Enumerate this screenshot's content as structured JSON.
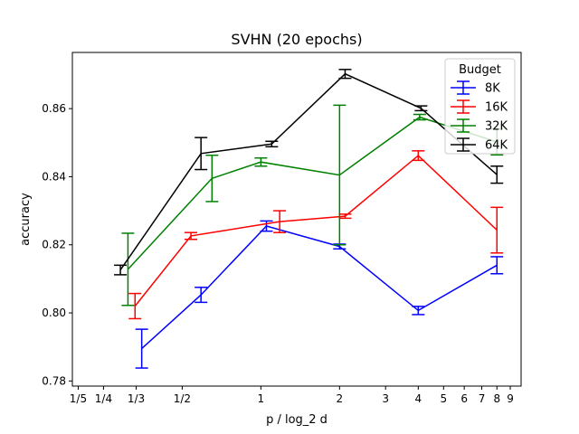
{
  "chart_data": {
    "type": "line",
    "title": "SVHN (20 epochs)",
    "xlabel": "p / log_2 d",
    "ylabel": "accuracy",
    "xscale": "log",
    "xlim": [
      0.19,
      9.9
    ],
    "ylim": [
      0.7785,
      0.8765
    ],
    "x_ticks": [
      {
        "value": 0.2,
        "label": "1/5"
      },
      {
        "value": 0.25,
        "label": "1/4"
      },
      {
        "value": 0.3333,
        "label": "1/3"
      },
      {
        "value": 0.5,
        "label": "1/2"
      },
      {
        "value": 1,
        "label": "1"
      },
      {
        "value": 2,
        "label": "2"
      },
      {
        "value": 3,
        "label": "3"
      },
      {
        "value": 4,
        "label": "4"
      },
      {
        "value": 5,
        "label": "5"
      },
      {
        "value": 6,
        "label": "6"
      },
      {
        "value": 7,
        "label": "7"
      },
      {
        "value": 8,
        "label": "8"
      },
      {
        "value": 9,
        "label": "9"
      }
    ],
    "y_ticks": [
      {
        "value": 0.78,
        "label": "0.78"
      },
      {
        "value": 0.8,
        "label": "0.80"
      },
      {
        "value": 0.82,
        "label": "0.82"
      },
      {
        "value": 0.84,
        "label": "0.84"
      },
      {
        "value": 0.86,
        "label": "0.86"
      }
    ],
    "grid": false,
    "legend": {
      "title": "Budget",
      "placement": "top-right"
    },
    "series": [
      {
        "name": "8K",
        "color": "#0000ff",
        "x": [
          0.35,
          0.59,
          1.05,
          2.0,
          4.0,
          8.0
        ],
        "y": [
          0.7895,
          0.8053,
          0.8255,
          0.8195,
          0.8007,
          0.814
        ],
        "err": [
          0.0057,
          0.0022,
          0.0015,
          0.0007,
          0.0012,
          0.0025
        ]
      },
      {
        "name": "16K",
        "color": "#ff0000",
        "x": [
          0.33,
          0.54,
          1.18,
          2.1,
          4.0,
          8.0
        ],
        "y": [
          0.802,
          0.8226,
          0.8268,
          0.8284,
          0.8462,
          0.8243
        ],
        "err": [
          0.0037,
          0.001,
          0.0032,
          0.0006,
          0.0014,
          0.0067
        ]
      },
      {
        "name": "32K",
        "color": "#008000",
        "x": [
          0.31,
          0.65,
          1.0,
          2.0,
          4.05,
          8.0
        ],
        "y": [
          0.8128,
          0.8395,
          0.8443,
          0.8405,
          0.8575,
          0.8502
        ],
        "err": [
          0.0106,
          0.0068,
          0.0012,
          0.0205,
          0.0008,
          0.0038
        ]
      },
      {
        "name": "64K",
        "color": "#000000",
        "x": [
          0.29,
          0.59,
          1.1,
          2.1,
          4.1,
          8.0
        ],
        "y": [
          0.8126,
          0.8468,
          0.8496,
          0.8702,
          0.8601,
          0.8406
        ],
        "err": [
          0.0014,
          0.0047,
          0.0008,
          0.0013,
          0.0007,
          0.0025
        ]
      }
    ]
  }
}
